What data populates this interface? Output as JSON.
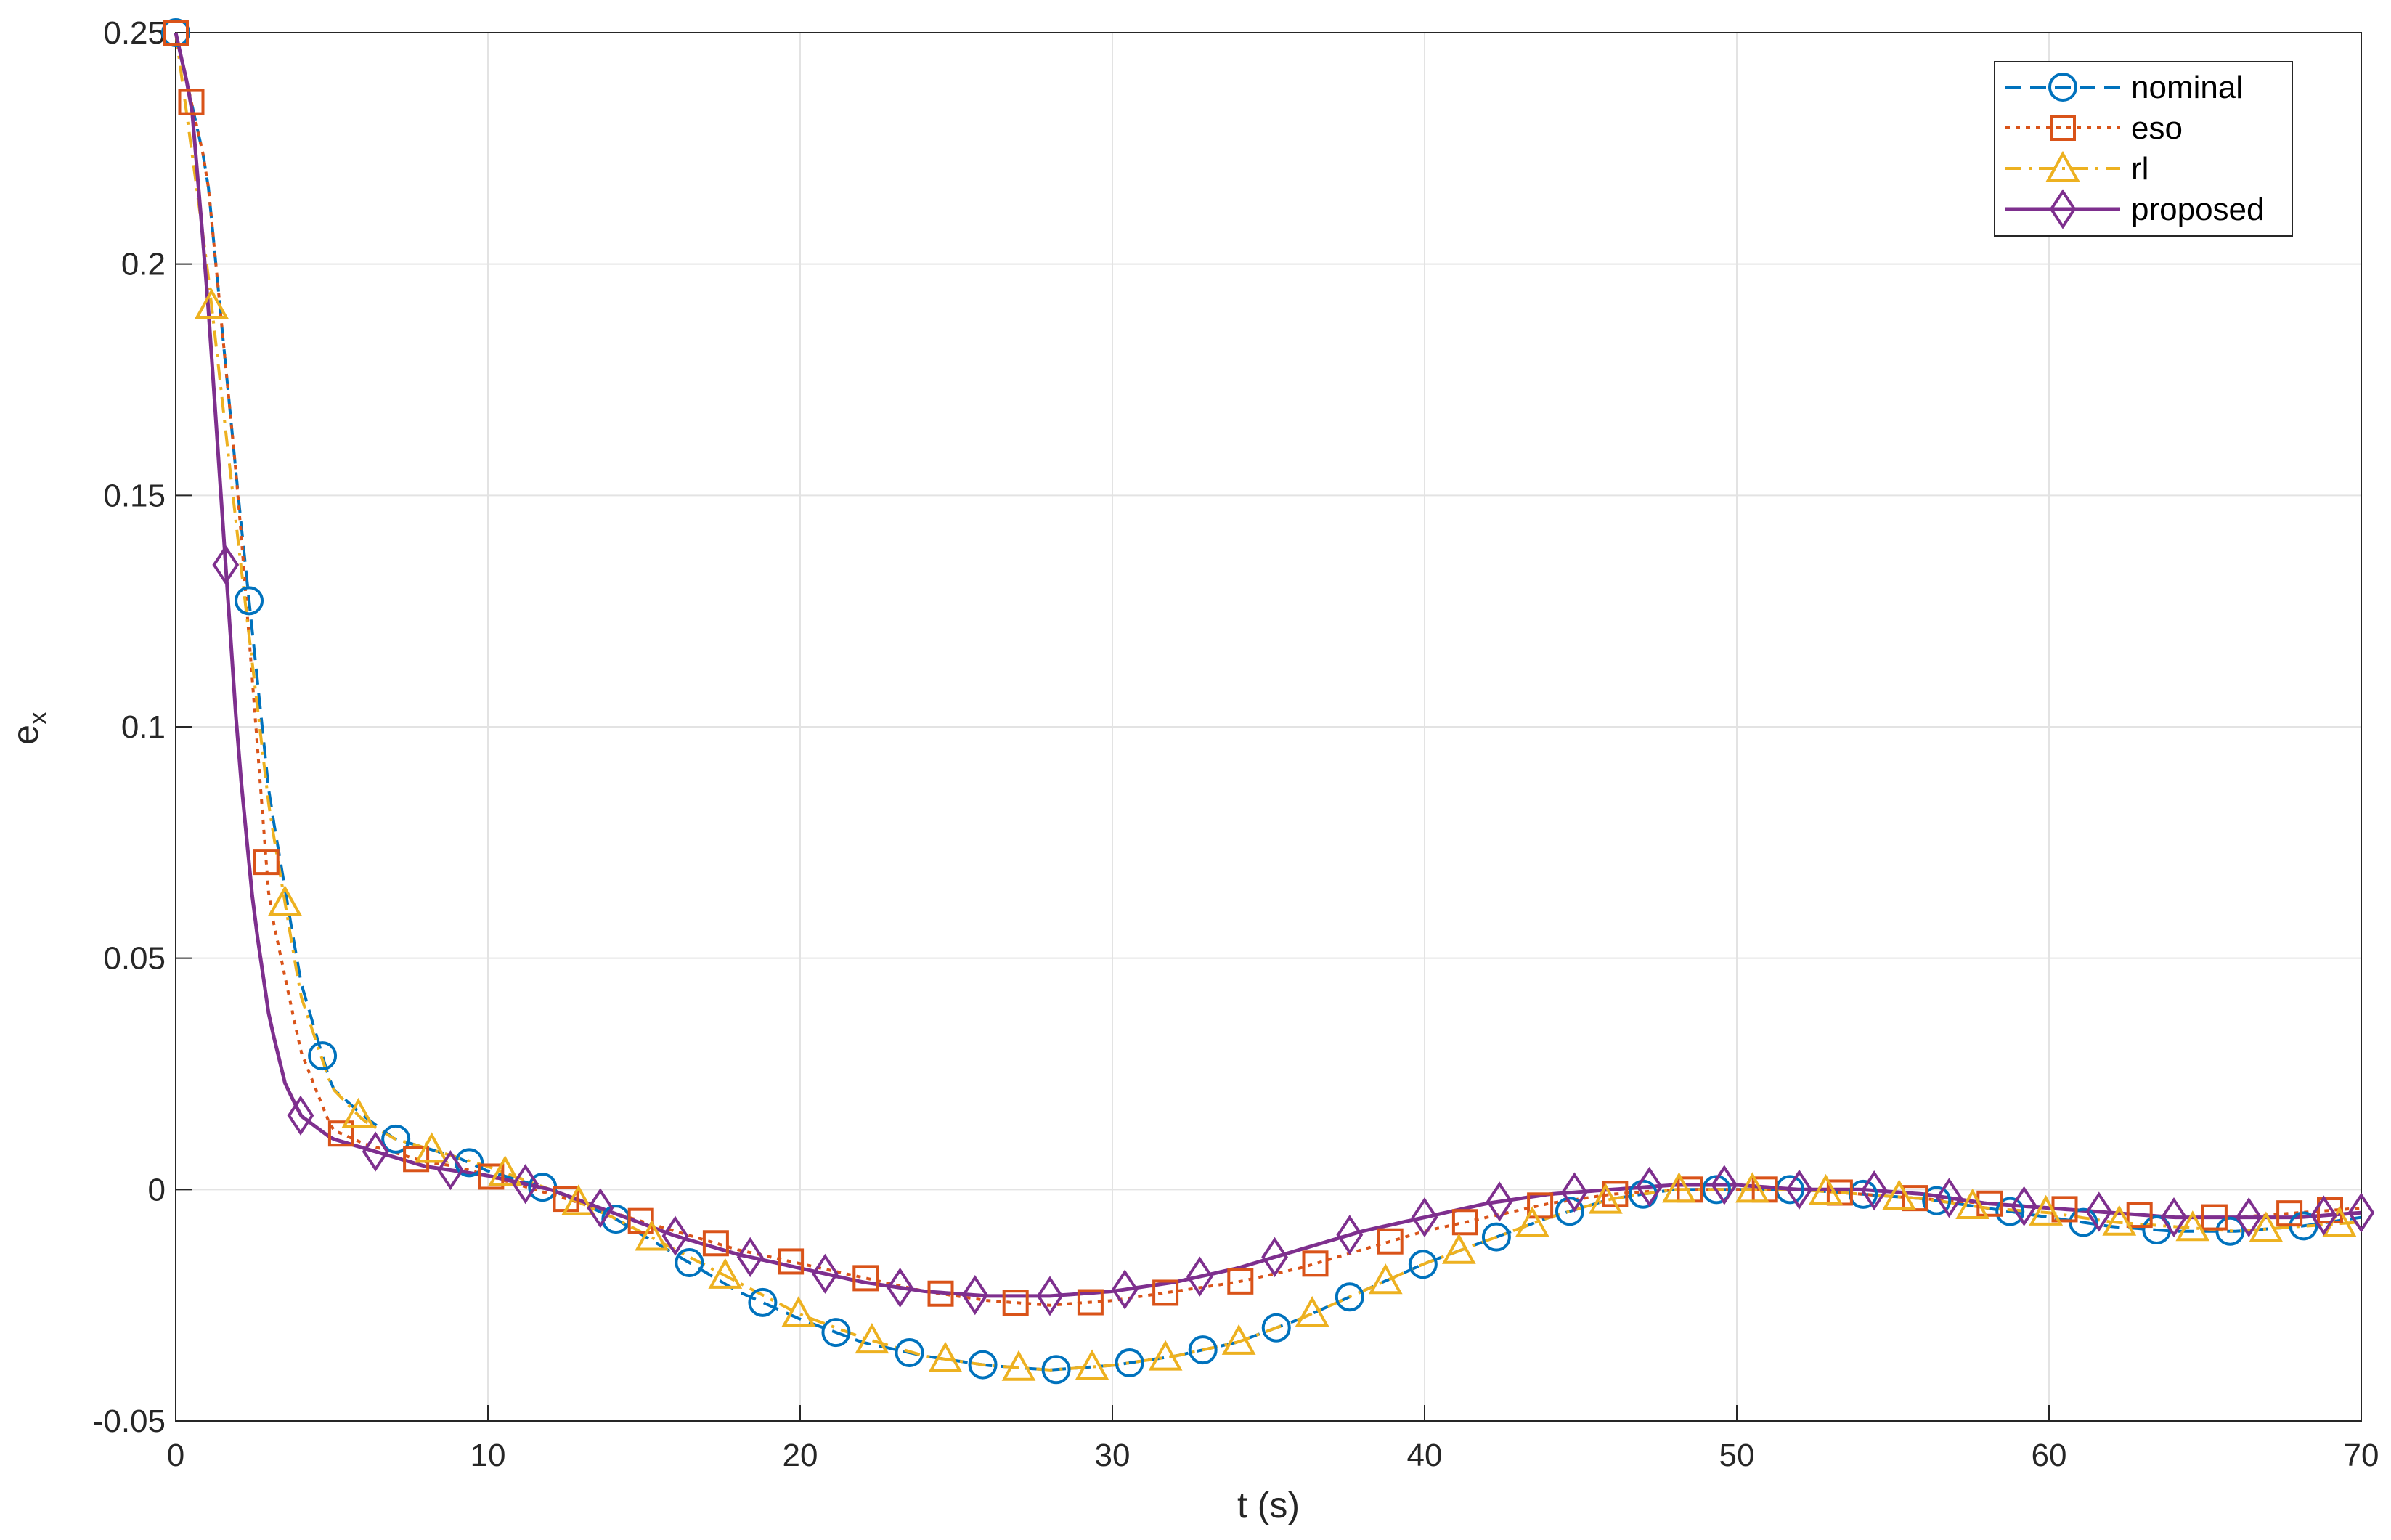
{
  "chart_data": {
    "type": "line",
    "title": "",
    "xlabel": "t (s)",
    "ylabel": "e",
    "ylabel_subscript": "x",
    "xlim": [
      0,
      70
    ],
    "ylim": [
      -0.05,
      0.25
    ],
    "xticks": [
      0,
      10,
      20,
      30,
      40,
      50,
      60,
      70
    ],
    "xtick_labels": [
      "0",
      "10",
      "20",
      "30",
      "40",
      "50",
      "60",
      "70"
    ],
    "yticks": [
      -0.05,
      0,
      0.05,
      0.1,
      0.15,
      0.2,
      0.25
    ],
    "ytick_labels": [
      "-0.05",
      "0",
      "0.05",
      "0.1",
      "0.15",
      "0.2",
      "0.25"
    ],
    "grid": true,
    "legend_position": "top-right",
    "series": [
      {
        "name": "nominal",
        "color": "#0072BD",
        "dash": "dashed",
        "marker": "circle",
        "x": [
          0,
          1,
          2,
          3,
          4,
          5,
          6,
          7,
          8,
          9,
          10,
          12,
          14,
          16,
          18,
          20,
          22,
          24,
          26,
          28,
          30,
          32,
          34,
          36,
          38,
          40,
          42,
          44,
          46,
          48,
          50,
          52,
          54,
          56,
          58,
          60,
          62,
          64,
          66,
          68,
          70
        ],
        "y": [
          0.25,
          0.22,
          0.15,
          0.085,
          0.045,
          0.022,
          0.016,
          0.011,
          0.009,
          0.007,
          0.004,
          0.0,
          -0.006,
          -0.014,
          -0.022,
          -0.028,
          -0.033,
          -0.036,
          -0.038,
          -0.039,
          -0.038,
          -0.036,
          -0.033,
          -0.028,
          -0.022,
          -0.016,
          -0.011,
          -0.006,
          -0.002,
          0.0,
          0.0,
          0.0,
          -0.001,
          -0.002,
          -0.004,
          -0.006,
          -0.008,
          -0.009,
          -0.009,
          -0.008,
          -0.006
        ],
        "marker_x": [
          0,
          2.35,
          4.7,
          7.05,
          9.4,
          11.75,
          14.1,
          16.45,
          18.8,
          21.15,
          23.5,
          25.85,
          28.2,
          30.55,
          32.9,
          35.25,
          37.6,
          39.95,
          42.3,
          44.65,
          47.0,
          49.35,
          51.7,
          54.05,
          56.4,
          58.75,
          61.1,
          63.45,
          65.8,
          68.15
        ]
      },
      {
        "name": "eso",
        "color": "#D95319",
        "dash": "dotted",
        "marker": "square",
        "x": [
          0,
          1,
          2,
          3,
          4,
          5,
          6,
          7,
          8,
          9,
          10,
          12,
          14,
          16,
          18,
          20,
          22,
          24,
          26,
          28,
          30,
          32,
          34,
          36,
          38,
          40,
          42,
          44,
          46,
          48,
          50,
          52,
          54,
          56,
          58,
          60,
          62,
          64,
          66,
          68,
          70
        ],
        "y": [
          0.25,
          0.22,
          0.15,
          0.062,
          0.03,
          0.013,
          0.01,
          0.008,
          0.006,
          0.005,
          0.003,
          -0.001,
          -0.005,
          -0.009,
          -0.013,
          -0.016,
          -0.019,
          -0.022,
          -0.024,
          -0.025,
          -0.024,
          -0.022,
          -0.02,
          -0.017,
          -0.013,
          -0.009,
          -0.006,
          -0.003,
          -0.001,
          0.0,
          0.0,
          0.0,
          -0.001,
          -0.002,
          -0.003,
          -0.004,
          -0.005,
          -0.006,
          -0.006,
          -0.005,
          -0.004
        ],
        "marker_x": [
          0,
          0.5,
          2.9,
          5.3,
          7.7,
          10.1,
          12.5,
          14.9,
          17.3,
          19.7,
          22.1,
          24.5,
          26.9,
          29.3,
          31.7,
          34.1,
          36.5,
          38.9,
          41.3,
          43.7,
          46.1,
          48.5,
          50.9,
          53.3,
          55.7,
          58.1,
          60.5,
          62.9,
          65.3,
          67.7,
          69.0
        ]
      },
      {
        "name": "rl",
        "color": "#EDB120",
        "dash": "dashdot",
        "marker": "triangle",
        "x": [
          0,
          1,
          2,
          3,
          4,
          5,
          6,
          7,
          8,
          9,
          10,
          12,
          14,
          16,
          18,
          20,
          22,
          24,
          26,
          28,
          30,
          32,
          34,
          36,
          38,
          40,
          42,
          44,
          46,
          48,
          50,
          52,
          54,
          56,
          58,
          60,
          62,
          64,
          66,
          68,
          70
        ],
        "y": [
          0.25,
          0.2,
          0.14,
          0.082,
          0.042,
          0.022,
          0.015,
          0.011,
          0.009,
          0.007,
          0.005,
          0.0,
          -0.006,
          -0.013,
          -0.02,
          -0.027,
          -0.032,
          -0.036,
          -0.038,
          -0.039,
          -0.038,
          -0.036,
          -0.033,
          -0.028,
          -0.022,
          -0.016,
          -0.011,
          -0.006,
          -0.002,
          0.0,
          0.0,
          0.0,
          -0.001,
          -0.002,
          -0.004,
          -0.005,
          -0.007,
          -0.008,
          -0.009,
          -0.008,
          -0.007
        ],
        "marker_x": [
          1.15,
          3.5,
          5.85,
          8.2,
          10.55,
          12.9,
          15.25,
          17.6,
          19.95,
          22.3,
          24.65,
          27.0,
          29.35,
          31.7,
          34.05,
          36.4,
          38.75,
          41.1,
          43.45,
          45.8,
          48.15,
          50.5,
          52.85,
          55.2,
          57.55,
          59.9,
          62.25,
          64.6,
          66.95,
          69.3
        ]
      },
      {
        "name": "proposed",
        "color": "#7E2F8E",
        "dash": "solid",
        "marker": "diamond",
        "x": [
          0,
          0.5,
          1,
          1.5,
          2,
          2.5,
          3,
          3.5,
          4,
          5,
          6,
          7,
          8,
          9,
          10,
          12,
          14,
          16,
          18,
          20,
          22,
          24,
          26,
          28,
          30,
          32,
          34,
          36,
          38,
          40,
          42,
          44,
          46,
          48,
          50,
          52,
          54,
          56,
          58,
          60,
          62,
          64,
          66,
          68,
          70
        ],
        "y": [
          0.25,
          0.235,
          0.195,
          0.145,
          0.095,
          0.06,
          0.037,
          0.023,
          0.016,
          0.011,
          0.009,
          0.007,
          0.005,
          0.004,
          0.003,
          0.0,
          -0.005,
          -0.01,
          -0.014,
          -0.017,
          -0.02,
          -0.022,
          -0.023,
          -0.023,
          -0.022,
          -0.02,
          -0.017,
          -0.013,
          -0.009,
          -0.006,
          -0.003,
          -0.001,
          0.0,
          0.001,
          0.001,
          0.0,
          0.0,
          -0.001,
          -0.003,
          -0.004,
          -0.005,
          -0.006,
          -0.006,
          -0.006,
          -0.005
        ],
        "marker_x": [
          1.6,
          4.0,
          6.4,
          8.8,
          11.2,
          13.6,
          16.0,
          18.4,
          20.8,
          23.2,
          25.6,
          28.0,
          30.4,
          32.8,
          35.2,
          37.6,
          40.0,
          42.4,
          44.8,
          47.2,
          49.6,
          52.0,
          54.4,
          56.8,
          59.2,
          61.6,
          64.0,
          66.4,
          68.8,
          70.0
        ]
      }
    ]
  }
}
